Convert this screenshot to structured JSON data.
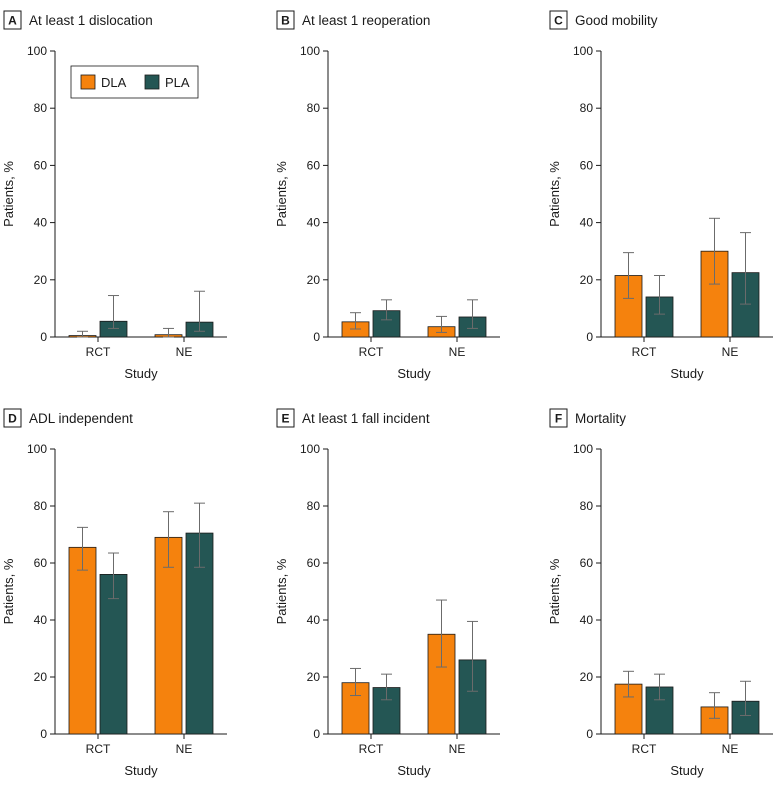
{
  "chart_data": [
    {
      "panel": "A",
      "type": "bar",
      "title": "At least 1 dislocation",
      "xlabel": "Study",
      "ylabel": "Patients, %",
      "ylim": [
        0,
        100
      ],
      "yticks": [
        "0",
        "20",
        "40",
        "60",
        "80",
        "100"
      ],
      "categories": [
        "RCT",
        "NE"
      ],
      "series": [
        {
          "name": "DLA",
          "color": "#f5820d",
          "values": [
            0.5,
            0.8
          ],
          "ci_low": [
            0,
            0
          ],
          "ci_high": [
            2,
            3
          ]
        },
        {
          "name": "PLA",
          "color": "#245654",
          "values": [
            5.5,
            5.2
          ],
          "ci_low": [
            3,
            2
          ],
          "ci_high": [
            14.5,
            16
          ]
        }
      ],
      "legend": {
        "position": "top-left",
        "entries": [
          "DLA",
          "PLA"
        ]
      }
    },
    {
      "panel": "B",
      "type": "bar",
      "title": "At least 1 reoperation",
      "xlabel": "Study",
      "ylabel": "Patients, %",
      "ylim": [
        0,
        100
      ],
      "yticks": [
        "0",
        "20",
        "40",
        "60",
        "80",
        "100"
      ],
      "categories": [
        "RCT",
        "NE"
      ],
      "series": [
        {
          "name": "DLA",
          "color": "#f5820d",
          "values": [
            5.3,
            3.6
          ],
          "ci_low": [
            2.8,
            1.6
          ],
          "ci_high": [
            8.5,
            7.2
          ]
        },
        {
          "name": "PLA",
          "color": "#245654",
          "values": [
            9.2,
            7
          ],
          "ci_low": [
            6,
            3
          ],
          "ci_high": [
            13,
            13
          ]
        }
      ]
    },
    {
      "panel": "C",
      "type": "bar",
      "title": "Good mobility",
      "xlabel": "Study",
      "ylabel": "Patients, %",
      "ylim": [
        0,
        100
      ],
      "yticks": [
        "0",
        "20",
        "40",
        "60",
        "80",
        "100"
      ],
      "categories": [
        "RCT",
        "NE"
      ],
      "series": [
        {
          "name": "DLA",
          "color": "#f5820d",
          "values": [
            21.5,
            30
          ],
          "ci_low": [
            13.5,
            18.5
          ],
          "ci_high": [
            29.5,
            41.5
          ]
        },
        {
          "name": "PLA",
          "color": "#245654",
          "values": [
            14,
            22.5
          ],
          "ci_low": [
            8,
            11.5
          ],
          "ci_high": [
            21.5,
            36.5
          ]
        }
      ]
    },
    {
      "panel": "D",
      "type": "bar",
      "title": "ADL independent",
      "xlabel": "Study",
      "ylabel": "Patients, %",
      "ylim": [
        0,
        100
      ],
      "yticks": [
        "0",
        "20",
        "40",
        "60",
        "80",
        "100"
      ],
      "categories": [
        "RCT",
        "NE"
      ],
      "series": [
        {
          "name": "DLA",
          "color": "#f5820d",
          "values": [
            65.5,
            69
          ],
          "ci_low": [
            57.5,
            58.5
          ],
          "ci_high": [
            72.5,
            78
          ]
        },
        {
          "name": "PLA",
          "color": "#245654",
          "values": [
            56,
            70.5
          ],
          "ci_low": [
            47.5,
            58.5
          ],
          "ci_high": [
            63.5,
            81
          ]
        }
      ]
    },
    {
      "panel": "E",
      "type": "bar",
      "title": "At least 1 fall incident",
      "xlabel": "Study",
      "ylabel": "Patients, %",
      "ylim": [
        0,
        100
      ],
      "yticks": [
        "0",
        "20",
        "40",
        "60",
        "80",
        "100"
      ],
      "categories": [
        "RCT",
        "NE"
      ],
      "series": [
        {
          "name": "DLA",
          "color": "#f5820d",
          "values": [
            18,
            35
          ],
          "ci_low": [
            13.5,
            23.5
          ],
          "ci_high": [
            23,
            47
          ]
        },
        {
          "name": "PLA",
          "color": "#245654",
          "values": [
            16.3,
            26
          ],
          "ci_low": [
            12,
            15
          ],
          "ci_high": [
            21,
            39.5
          ]
        }
      ]
    },
    {
      "panel": "F",
      "type": "bar",
      "title": "Mortality",
      "xlabel": "Study",
      "ylabel": "Patients, %",
      "ylim": [
        0,
        100
      ],
      "yticks": [
        "0",
        "20",
        "40",
        "60",
        "80",
        "100"
      ],
      "categories": [
        "RCT",
        "NE"
      ],
      "series": [
        {
          "name": "DLA",
          "color": "#f5820d",
          "values": [
            17.5,
            9.5
          ],
          "ci_low": [
            13,
            5.5
          ],
          "ci_high": [
            22,
            14.5
          ]
        },
        {
          "name": "PLA",
          "color": "#245654",
          "values": [
            16.5,
            11.5
          ],
          "ci_low": [
            12,
            6.5
          ],
          "ci_high": [
            21,
            18.5
          ]
        }
      ]
    }
  ]
}
